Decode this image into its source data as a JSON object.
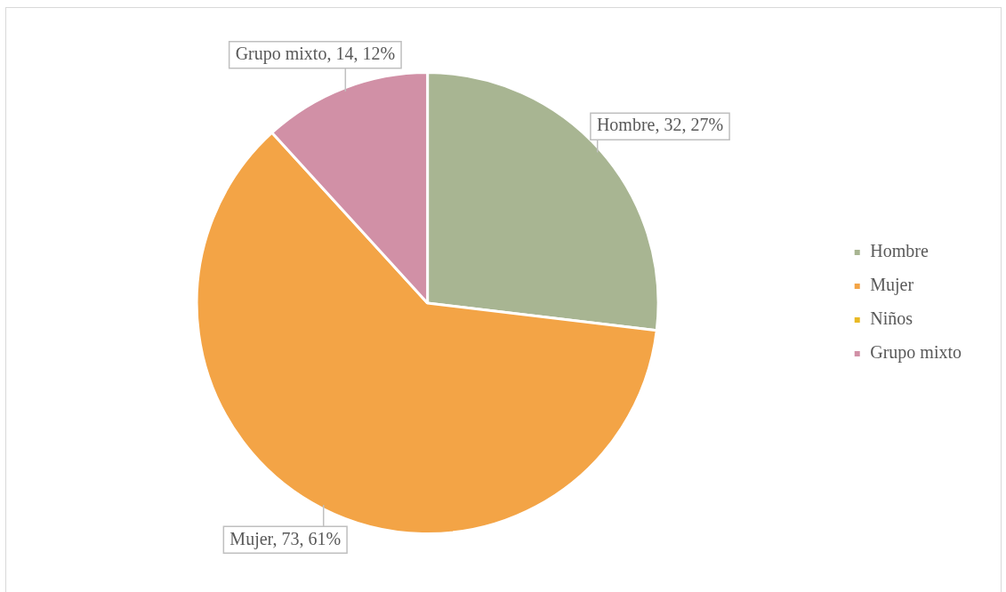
{
  "chart_data": {
    "type": "pie",
    "categories": [
      "Hombre",
      "Mujer",
      "Niños",
      "Grupo mixto"
    ],
    "values": [
      32,
      73,
      0,
      14
    ],
    "colors": [
      "#a8b592",
      "#f3a446",
      "#e9b925",
      "#d190a6"
    ],
    "value_labels": [
      "Hombre, 32, 27%",
      "Mujer, 73, 61%",
      null,
      "Grupo mixto, 14, 12%"
    ],
    "legend": "right"
  }
}
